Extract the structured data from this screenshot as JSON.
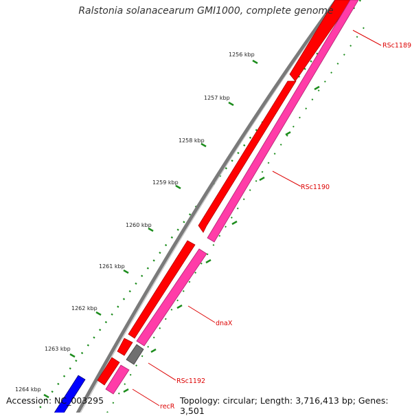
{
  "map": {
    "title": "Ralstonia solanacearum GMI1000, complete genome",
    "accession": "Accession: NC_003295",
    "summary": "Topology: circular; Length: 3,716,413 bp; Genes: 3,501",
    "kbp_labels": [
      "1256 kbp",
      "1257 kbp",
      "1258 kbp",
      "1259 kbp",
      "1260 kbp",
      "1261 kbp",
      "1262 kbp",
      "1263 kbp",
      "1264 kbp"
    ],
    "genes": {
      "rsc1189": "RSc1189",
      "rsc1190": "RSc1190",
      "dnax": "dnaX",
      "rsc1192": "RSc1192",
      "recr": "recR"
    }
  },
  "colors": {
    "backbone": "#808080",
    "gene_forward": "#ff0000",
    "gene_cds": "#ff3ca8",
    "gene_grey": "#707070",
    "gene_blue": "#0000ff",
    "ticks": "#1c8c1c",
    "label": "#dd0000"
  }
}
